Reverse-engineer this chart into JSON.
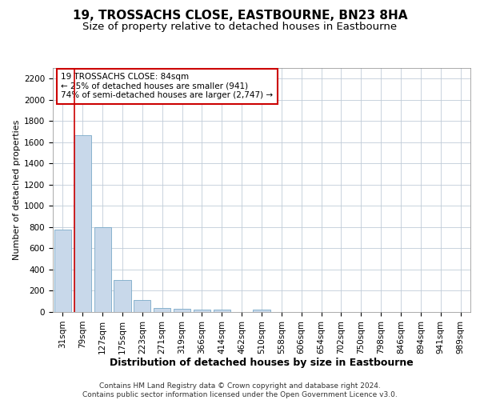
{
  "title": "19, TROSSACHS CLOSE, EASTBOURNE, BN23 8HA",
  "subtitle": "Size of property relative to detached houses in Eastbourne",
  "xlabel": "Distribution of detached houses by size in Eastbourne",
  "ylabel": "Number of detached properties",
  "footer_line1": "Contains HM Land Registry data © Crown copyright and database right 2024.",
  "footer_line2": "Contains public sector information licensed under the Open Government Licence v3.0.",
  "annotation_line1": "19 TROSSACHS CLOSE: 84sqm",
  "annotation_line2": "← 25% of detached houses are smaller (941)",
  "annotation_line3": "74% of semi-detached houses are larger (2,747) →",
  "bar_color": "#c8d8ea",
  "bar_edge_color": "#7aaac8",
  "marker_line_color": "#cc0000",
  "categories": [
    "31sqm",
    "79sqm",
    "127sqm",
    "175sqm",
    "223sqm",
    "271sqm",
    "319sqm",
    "366sqm",
    "414sqm",
    "462sqm",
    "510sqm",
    "558sqm",
    "606sqm",
    "654sqm",
    "702sqm",
    "750sqm",
    "798sqm",
    "846sqm",
    "894sqm",
    "941sqm",
    "989sqm"
  ],
  "values": [
    775,
    1670,
    800,
    300,
    110,
    40,
    30,
    20,
    20,
    0,
    25,
    0,
    0,
    0,
    0,
    0,
    0,
    0,
    0,
    0,
    0
  ],
  "ylim": [
    0,
    2300
  ],
  "yticks": [
    0,
    200,
    400,
    600,
    800,
    1000,
    1200,
    1400,
    1600,
    1800,
    2000,
    2200
  ],
  "marker_index": 1,
  "title_fontsize": 11,
  "subtitle_fontsize": 9.5,
  "ylabel_fontsize": 8,
  "xlabel_fontsize": 9,
  "tick_fontsize": 7.5,
  "annot_fontsize": 7.5,
  "footer_fontsize": 6.5
}
